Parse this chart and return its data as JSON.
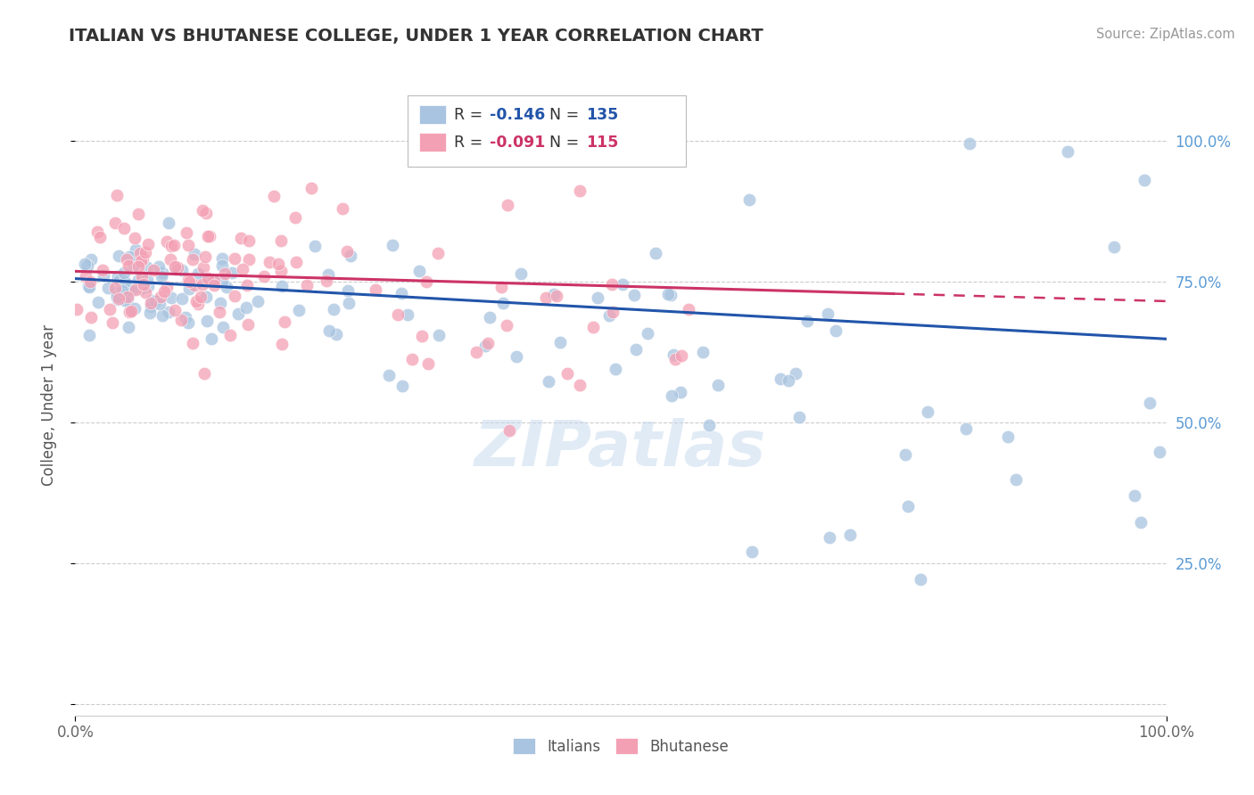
{
  "title": "ITALIAN VS BHUTANESE COLLEGE, UNDER 1 YEAR CORRELATION CHART",
  "source": "Source: ZipAtlas.com",
  "ylabel": "College, Under 1 year",
  "xlim": [
    0.0,
    1.0
  ],
  "ylim": [
    -0.02,
    1.08
  ],
  "blue_R": -0.146,
  "blue_N": 135,
  "pink_R": -0.091,
  "pink_N": 115,
  "blue_color": "#a8c4e0",
  "pink_color": "#f4a0b4",
  "blue_line_color": "#2255aa",
  "pink_line_color": "#cc3366",
  "watermark": "ZIPatlas",
  "legend_label_blue": "Italians",
  "legend_label_pink": "Bhutanese",
  "title_color": "#333333",
  "source_color": "#999999",
  "right_label_color": "#5b9bd5",
  "blue_line_start_y": 0.755,
  "blue_line_end_y": 0.648,
  "pink_line_start_y": 0.768,
  "pink_line_solid_end_x": 0.75,
  "pink_line_end_y": 0.715,
  "grid_color": "#cccccc"
}
